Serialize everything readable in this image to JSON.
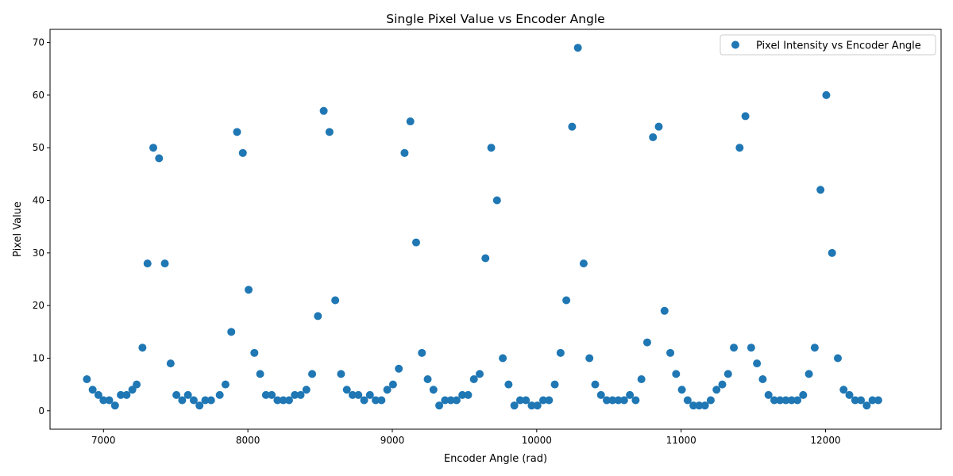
{
  "chart_data": {
    "type": "scatter",
    "title": "Single Pixel Value vs Encoder Angle",
    "xlabel": "Encoder Angle (rad)",
    "ylabel": "Pixel Value",
    "xlim": [
      6630,
      12800
    ],
    "ylim": [
      -3.5,
      72.5
    ],
    "xticks": [
      7000,
      8000,
      9000,
      10000,
      11000,
      12000
    ],
    "yticks": [
      0,
      10,
      20,
      30,
      40,
      50,
      60,
      70
    ],
    "grid": false,
    "legend": {
      "placement": "top-right",
      "entries": [
        "Pixel Intensity vs Encoder Angle"
      ]
    },
    "series": [
      {
        "name": "Pixel Intensity vs Encoder Angle",
        "color": "#1f77b4",
        "marker": "circle",
        "points": [
          [
            6885,
            6
          ],
          [
            6925,
            4
          ],
          [
            6965,
            3
          ],
          [
            7000,
            2
          ],
          [
            7040,
            2
          ],
          [
            7080,
            1
          ],
          [
            7120,
            3
          ],
          [
            7160,
            3
          ],
          [
            7200,
            4
          ],
          [
            7230,
            5
          ],
          [
            7270,
            12
          ],
          [
            7305,
            28
          ],
          [
            7345,
            50
          ],
          [
            7385,
            48
          ],
          [
            7425,
            28
          ],
          [
            7465,
            9
          ],
          [
            7505,
            3
          ],
          [
            7545,
            2
          ],
          [
            7585,
            3
          ],
          [
            7625,
            2
          ],
          [
            7665,
            1
          ],
          [
            7705,
            2
          ],
          [
            7745,
            2
          ],
          [
            7805,
            3
          ],
          [
            7845,
            5
          ],
          [
            7885,
            15
          ],
          [
            7925,
            53
          ],
          [
            7965,
            49
          ],
          [
            8005,
            23
          ],
          [
            8045,
            11
          ],
          [
            8085,
            7
          ],
          [
            8125,
            3
          ],
          [
            8165,
            3
          ],
          [
            8205,
            2
          ],
          [
            8245,
            2
          ],
          [
            8285,
            2
          ],
          [
            8325,
            3
          ],
          [
            8365,
            3
          ],
          [
            8405,
            4
          ],
          [
            8445,
            7
          ],
          [
            8485,
            18
          ],
          [
            8525,
            57
          ],
          [
            8565,
            53
          ],
          [
            8605,
            21
          ],
          [
            8645,
            7
          ],
          [
            8685,
            4
          ],
          [
            8725,
            3
          ],
          [
            8765,
            3
          ],
          [
            8805,
            2
          ],
          [
            8845,
            3
          ],
          [
            8885,
            2
          ],
          [
            8925,
            2
          ],
          [
            8965,
            4
          ],
          [
            9005,
            5
          ],
          [
            9045,
            8
          ],
          [
            9085,
            49
          ],
          [
            9125,
            55
          ],
          [
            9165,
            32
          ],
          [
            9205,
            11
          ],
          [
            9245,
            6
          ],
          [
            9285,
            4
          ],
          [
            9325,
            1
          ],
          [
            9365,
            2
          ],
          [
            9405,
            2
          ],
          [
            9445,
            2
          ],
          [
            9485,
            3
          ],
          [
            9525,
            3
          ],
          [
            9565,
            6
          ],
          [
            9605,
            7
          ],
          [
            9645,
            29
          ],
          [
            9685,
            50
          ],
          [
            9725,
            40
          ],
          [
            9765,
            10
          ],
          [
            9805,
            5
          ],
          [
            9845,
            1
          ],
          [
            9885,
            2
          ],
          [
            9925,
            2
          ],
          [
            9965,
            1
          ],
          [
            10005,
            1
          ],
          [
            10045,
            2
          ],
          [
            10085,
            2
          ],
          [
            10125,
            5
          ],
          [
            10165,
            11
          ],
          [
            10205,
            21
          ],
          [
            10245,
            54
          ],
          [
            10285,
            69
          ],
          [
            10325,
            28
          ],
          [
            10365,
            10
          ],
          [
            10405,
            5
          ],
          [
            10445,
            3
          ],
          [
            10485,
            2
          ],
          [
            10525,
            2
          ],
          [
            10565,
            2
          ],
          [
            10605,
            2
          ],
          [
            10645,
            3
          ],
          [
            10685,
            2
          ],
          [
            10725,
            6
          ],
          [
            10765,
            13
          ],
          [
            10805,
            52
          ],
          [
            10845,
            54
          ],
          [
            10885,
            19
          ],
          [
            10925,
            11
          ],
          [
            10965,
            7
          ],
          [
            11005,
            4
          ],
          [
            11045,
            2
          ],
          [
            11085,
            1
          ],
          [
            11125,
            1
          ],
          [
            11165,
            1
          ],
          [
            11205,
            2
          ],
          [
            11245,
            4
          ],
          [
            11285,
            5
          ],
          [
            11325,
            7
          ],
          [
            11365,
            12
          ],
          [
            11405,
            50
          ],
          [
            11445,
            56
          ],
          [
            11485,
            12
          ],
          [
            11525,
            9
          ],
          [
            11565,
            6
          ],
          [
            11605,
            3
          ],
          [
            11645,
            2
          ],
          [
            11685,
            2
          ],
          [
            11725,
            2
          ],
          [
            11765,
            2
          ],
          [
            11805,
            2
          ],
          [
            11845,
            3
          ],
          [
            11885,
            7
          ],
          [
            11925,
            12
          ],
          [
            11965,
            42
          ],
          [
            12005,
            60
          ],
          [
            12045,
            30
          ],
          [
            12085,
            10
          ],
          [
            12125,
            4
          ],
          [
            12165,
            3
          ],
          [
            12205,
            2
          ],
          [
            12245,
            2
          ],
          [
            12285,
            1
          ],
          [
            12325,
            2
          ],
          [
            12365,
            2
          ]
        ]
      }
    ]
  }
}
